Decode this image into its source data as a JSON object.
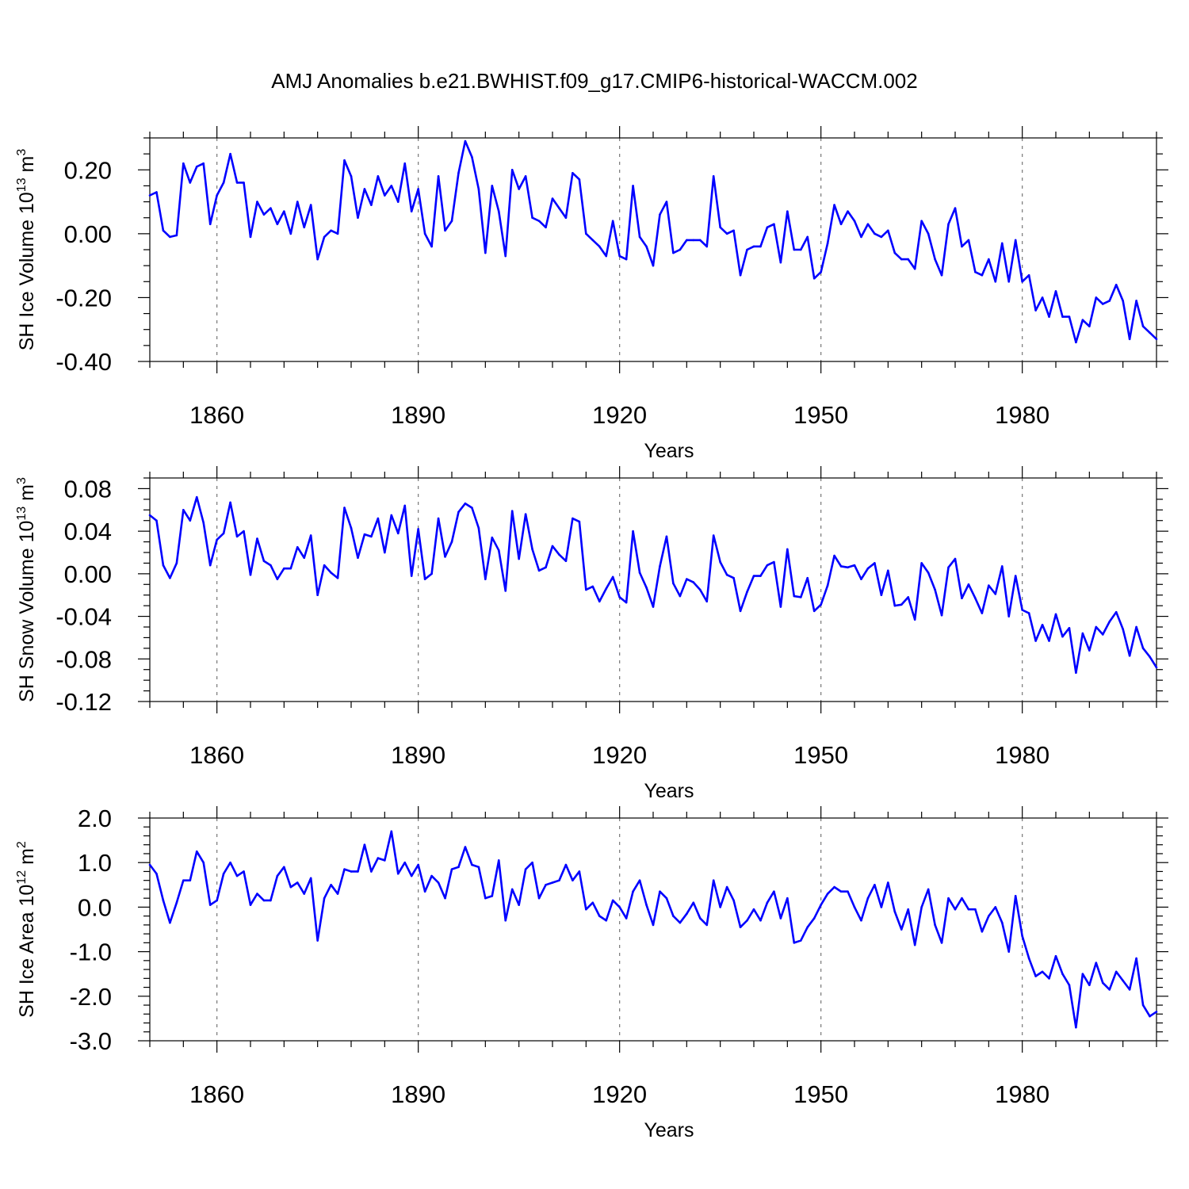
{
  "figure": {
    "title": "AMJ Anomalies b.e21.BWHIST.f09_g17.CMIP6-historical-WACCM.002",
    "line_color": "#0000ff"
  },
  "chart_data": [
    {
      "type": "line",
      "title": "",
      "xlabel": "Years",
      "ylabel": "SH Ice Volume 10",
      "ylabel_exponent": "13",
      "ylabel_unit": "m",
      "ylabel_unit_exponent": "3",
      "xlim": [
        1850,
        2000
      ],
      "ylim": [
        -0.4,
        0.3
      ],
      "xticks": [
        1860,
        1890,
        1920,
        1950,
        1980
      ],
      "yticks": [
        "0.20",
        "0.00",
        "-0.20",
        "-0.40"
      ],
      "ytick_values": [
        0.2,
        0.0,
        -0.2,
        -0.4
      ],
      "grid": "vertical dashed at major x ticks",
      "series": [
        {
          "name": "SH Ice Volume",
          "x0": 1850,
          "values": [
            0.12,
            0.13,
            0.01,
            -0.01,
            -0.005,
            0.22,
            0.16,
            0.21,
            0.22,
            0.03,
            0.12,
            0.16,
            0.25,
            0.16,
            0.16,
            -0.01,
            0.1,
            0.06,
            0.08,
            0.03,
            0.07,
            0.0,
            0.1,
            0.02,
            0.09,
            -0.08,
            -0.01,
            0.01,
            0.0,
            0.23,
            0.18,
            0.05,
            0.14,
            0.09,
            0.18,
            0.12,
            0.15,
            0.1,
            0.22,
            0.07,
            0.14,
            0.0,
            -0.04,
            0.18,
            0.01,
            0.04,
            0.19,
            0.29,
            0.24,
            0.14,
            -0.06,
            0.15,
            0.07,
            -0.07,
            0.2,
            0.14,
            0.18,
            0.05,
            0.04,
            0.02,
            0.11,
            0.08,
            0.05,
            0.19,
            0.17,
            0.0,
            -0.02,
            -0.04,
            -0.07,
            0.04,
            -0.07,
            -0.08,
            0.15,
            -0.01,
            -0.04,
            -0.1,
            0.06,
            0.1,
            -0.06,
            -0.05,
            -0.02,
            -0.02,
            -0.02,
            -0.04,
            0.18,
            0.02,
            0.0,
            0.01,
            -0.13,
            -0.05,
            -0.04,
            -0.04,
            0.02,
            0.03,
            -0.09,
            0.07,
            -0.05,
            -0.05,
            -0.01,
            -0.14,
            -0.12,
            -0.03,
            0.09,
            0.03,
            0.07,
            0.04,
            -0.01,
            0.03,
            0.0,
            -0.01,
            0.01,
            -0.06,
            -0.08,
            -0.08,
            -0.11,
            0.04,
            0.0,
            -0.08,
            -0.13,
            0.03,
            0.08,
            -0.04,
            -0.02,
            -0.12,
            -0.13,
            -0.08,
            -0.15,
            -0.03,
            -0.15,
            -0.02,
            -0.15,
            -0.13,
            -0.24,
            -0.2,
            -0.26,
            -0.18,
            -0.26,
            -0.26,
            -0.34,
            -0.27,
            -0.29,
            -0.2,
            -0.22,
            -0.21,
            -0.16,
            -0.21,
            -0.33,
            -0.21,
            -0.29,
            -0.31,
            -0.33
          ]
        }
      ]
    },
    {
      "type": "line",
      "title": "",
      "xlabel": "Years",
      "ylabel": "SH Snow Volume 10",
      "ylabel_exponent": "13",
      "ylabel_unit": "m",
      "ylabel_unit_exponent": "3",
      "xlim": [
        1850,
        2000
      ],
      "ylim": [
        -0.12,
        0.09
      ],
      "xticks": [
        1860,
        1890,
        1920,
        1950,
        1980
      ],
      "yticks": [
        "0.08",
        "0.04",
        "0.00",
        "-0.04",
        "-0.08",
        "-0.12"
      ],
      "ytick_values": [
        0.08,
        0.04,
        0.0,
        -0.04,
        -0.08,
        -0.12
      ],
      "grid": "vertical dashed at major x ticks",
      "series": [
        {
          "name": "SH Snow Volume",
          "x0": 1850,
          "values": [
            0.055,
            0.05,
            0.008,
            -0.004,
            0.01,
            0.06,
            0.05,
            0.072,
            0.048,
            0.008,
            0.032,
            0.038,
            0.067,
            0.035,
            0.04,
            -0.001,
            0.033,
            0.012,
            0.008,
            -0.005,
            0.005,
            0.005,
            0.025,
            0.015,
            0.036,
            -0.02,
            0.008,
            0.001,
            -0.004,
            0.062,
            0.043,
            0.015,
            0.037,
            0.035,
            0.052,
            0.02,
            0.055,
            0.038,
            0.064,
            -0.002,
            0.042,
            -0.005,
            0.0,
            0.052,
            0.016,
            0.03,
            0.058,
            0.066,
            0.062,
            0.043,
            -0.005,
            0.034,
            0.022,
            -0.016,
            0.059,
            0.014,
            0.056,
            0.023,
            0.003,
            0.006,
            0.026,
            0.018,
            0.012,
            0.052,
            0.049,
            -0.015,
            -0.012,
            -0.026,
            -0.014,
            -0.003,
            -0.022,
            -0.027,
            0.04,
            0.001,
            -0.013,
            -0.031,
            0.007,
            0.035,
            -0.009,
            -0.021,
            -0.005,
            -0.008,
            -0.015,
            -0.026,
            0.036,
            0.011,
            -0.001,
            -0.004,
            -0.035,
            -0.017,
            -0.002,
            -0.002,
            0.008,
            0.011,
            -0.031,
            0.023,
            -0.021,
            -0.022,
            -0.004,
            -0.035,
            -0.029,
            -0.011,
            0.017,
            0.007,
            0.006,
            0.008,
            -0.005,
            0.005,
            0.01,
            -0.02,
            0.003,
            -0.03,
            -0.029,
            -0.022,
            -0.043,
            0.01,
            0.001,
            -0.015,
            -0.039,
            0.006,
            0.014,
            -0.023,
            -0.01,
            -0.023,
            -0.037,
            -0.011,
            -0.019,
            0.007,
            -0.04,
            -0.002,
            -0.034,
            -0.037,
            -0.063,
            -0.048,
            -0.063,
            -0.038,
            -0.059,
            -0.051,
            -0.093,
            -0.056,
            -0.072,
            -0.05,
            -0.057,
            -0.045,
            -0.036,
            -0.052,
            -0.077,
            -0.05,
            -0.07,
            -0.078,
            -0.088
          ]
        }
      ]
    },
    {
      "type": "line",
      "title": "",
      "xlabel": "Years",
      "ylabel": "SH Ice Area 10",
      "ylabel_exponent": "12",
      "ylabel_unit": "m",
      "ylabel_unit_exponent": "2",
      "xlim": [
        1850,
        2000
      ],
      "ylim": [
        -3.0,
        2.0
      ],
      "xticks": [
        1860,
        1890,
        1920,
        1950,
        1980
      ],
      "yticks": [
        "2.0",
        "1.0",
        "0.0",
        "-1.0",
        "-2.0",
        "-3.0"
      ],
      "ytick_values": [
        2.0,
        1.0,
        0.0,
        -1.0,
        -2.0,
        -3.0
      ],
      "grid": "vertical dashed at major x ticks",
      "series": [
        {
          "name": "SH Ice Area",
          "x0": 1850,
          "values": [
            0.95,
            0.75,
            0.15,
            -0.35,
            0.1,
            0.6,
            0.6,
            1.25,
            1.0,
            0.05,
            0.15,
            0.75,
            1.0,
            0.7,
            0.8,
            0.05,
            0.3,
            0.15,
            0.15,
            0.7,
            0.9,
            0.45,
            0.55,
            0.3,
            0.65,
            -0.75,
            0.2,
            0.5,
            0.3,
            0.85,
            0.8,
            0.8,
            1.4,
            0.8,
            1.1,
            1.05,
            1.7,
            0.75,
            1.0,
            0.7,
            0.95,
            0.35,
            0.7,
            0.55,
            0.2,
            0.85,
            0.9,
            1.35,
            0.95,
            0.9,
            0.2,
            0.25,
            1.05,
            -0.3,
            0.4,
            0.05,
            0.85,
            1.0,
            0.2,
            0.5,
            0.55,
            0.6,
            0.95,
            0.6,
            0.8,
            -0.05,
            0.1,
            -0.2,
            -0.3,
            0.15,
            0.0,
            -0.25,
            0.35,
            0.6,
            0.05,
            -0.4,
            0.35,
            0.2,
            -0.2,
            -0.35,
            -0.15,
            0.1,
            -0.25,
            -0.4,
            0.6,
            0.0,
            0.45,
            0.15,
            -0.45,
            -0.3,
            -0.05,
            -0.3,
            0.1,
            0.35,
            -0.25,
            0.2,
            -0.8,
            -0.75,
            -0.45,
            -0.25,
            0.05,
            0.3,
            0.45,
            0.35,
            0.35,
            0.0,
            -0.3,
            0.2,
            0.5,
            0.0,
            0.55,
            -0.1,
            -0.5,
            -0.05,
            -0.85,
            0.0,
            0.4,
            -0.4,
            -0.8,
            0.2,
            -0.05,
            0.2,
            -0.05,
            -0.05,
            -0.55,
            -0.2,
            0.0,
            -0.35,
            -1.0,
            0.25,
            -0.65,
            -1.15,
            -1.55,
            -1.45,
            -1.6,
            -1.1,
            -1.5,
            -1.75,
            -2.7,
            -1.5,
            -1.75,
            -1.25,
            -1.7,
            -1.85,
            -1.45,
            -1.65,
            -1.85,
            -1.15,
            -2.2,
            -2.45,
            -2.35
          ]
        }
      ]
    }
  ]
}
